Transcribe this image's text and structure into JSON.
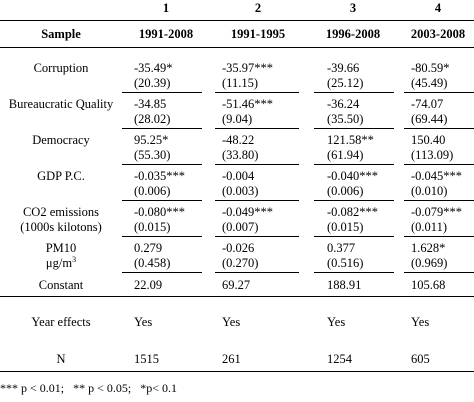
{
  "header": {
    "numbers": [
      "1",
      "2",
      "3",
      "4"
    ],
    "sample_label": "Sample",
    "periods": [
      "1991-2008",
      "1991-1995",
      "1996-2008",
      "2003-2008"
    ]
  },
  "rows": [
    {
      "label": "Corruption",
      "coef": [
        "-35.49*",
        "-35.97***",
        "-39.66",
        "-80.59*"
      ],
      "se": [
        "(20.39)",
        "(11.15)",
        "(25.12)",
        "(45.49)"
      ]
    },
    {
      "label": "Bureaucratic Quality",
      "coef": [
        "-34.85",
        "-51.46***",
        "-36.24",
        "-74.07"
      ],
      "se": [
        "(28.02)",
        "(9.04)",
        "(35.50)",
        "(69.44)"
      ]
    },
    {
      "label": "Democracy",
      "coef": [
        "95.25*",
        "-48.22",
        "121.58**",
        "150.40"
      ],
      "se": [
        "(55.30)",
        "(33.80)",
        "(61.94)",
        "(113.09)"
      ]
    },
    {
      "label": "GDP P.C.",
      "coef": [
        "-0.035***",
        "-0.004",
        "-0.040***",
        "-0.045***"
      ],
      "se": [
        "(0.006)",
        "(0.003)",
        "(0.006)",
        "(0.010)"
      ]
    },
    {
      "label": "CO2 emissions",
      "label2": "(1000s kilotons)",
      "coef": [
        "-0.080***",
        "-0.049***",
        "-0.082***",
        "-0.079***"
      ],
      "se": [
        "(0.015)",
        "(0.007)",
        "(0.015)",
        "(0.011)"
      ]
    },
    {
      "label": "PM10",
      "label2_base": "μg/m",
      "label2_sup": "3",
      "coef": [
        "0.279",
        "-0.026",
        "0.377",
        "1.628*"
      ],
      "se": [
        "(0.458)",
        "(0.270)",
        "(0.516)",
        "(0.969)"
      ]
    }
  ],
  "constant": {
    "label": "Constant",
    "values": [
      "22.09",
      "69.27",
      "188.91",
      "105.68"
    ]
  },
  "year_effects": {
    "label": "Year effects",
    "values": [
      "Yes",
      "Yes",
      "Yes",
      "Yes"
    ]
  },
  "n": {
    "label": "N",
    "values": [
      "1515",
      "261",
      "1254",
      "605"
    ]
  },
  "footnote": "*** p < 0.01;   ** p < 0.05;   *p< 0.1"
}
